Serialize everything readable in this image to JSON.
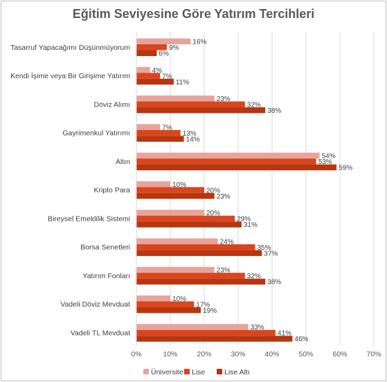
{
  "chart_data": {
    "type": "bar",
    "orientation": "horizontal",
    "title": "Eğitim Seviyesine Göre Yatırım Tercihleri",
    "categories": [
      "Tasarruf Yapacağımı Düşünmüyorum",
      "Kendi İşime veya Bir Girişime Yatırım",
      "Döviz Alımı",
      "Gayrimenkul Yatırımı",
      "Altın",
      "Kripto Para",
      "Bireysel Emeklilik Sistemi",
      "Borsa Senetleri",
      "Yatırım Fonları",
      "Vadeli Döviz Mevduat",
      "Vadeli TL Mevduat"
    ],
    "series": [
      {
        "name": "Üniversite",
        "color": "#E8A49C",
        "values": [
          16,
          4,
          23,
          7,
          54,
          10,
          20,
          24,
          23,
          10,
          33
        ]
      },
      {
        "name": "Lise",
        "color": "#D9461D",
        "values": [
          9,
          7,
          32,
          13,
          53,
          20,
          29,
          35,
          32,
          17,
          41
        ]
      },
      {
        "name": "Lise Altı",
        "color": "#B8360F",
        "values": [
          6,
          11,
          38,
          14,
          59,
          23,
          31,
          37,
          38,
          19,
          46
        ]
      }
    ],
    "value_suffix": "%",
    "xlim": [
      0,
      70
    ],
    "x_ticks": [
      "0%",
      "10%",
      "20%",
      "30%",
      "40%",
      "50%",
      "60%",
      "70%"
    ],
    "grid": true,
    "legend_position": "bottom"
  }
}
